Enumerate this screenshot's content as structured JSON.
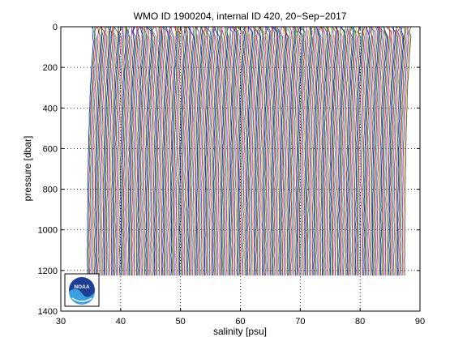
{
  "chart_data": {
    "type": "line",
    "title": "WMO ID 1900204, internal ID 420, 20−Sep−2017",
    "xlabel": "salinity [psu]",
    "ylabel": "pressure [dbar]",
    "xlim": [
      30,
      90
    ],
    "ylim": [
      0,
      1400
    ],
    "y_reversed": true,
    "grid": "dotted",
    "xticks": [
      30,
      40,
      50,
      60,
      70,
      80,
      90
    ],
    "yticks": [
      0,
      200,
      400,
      600,
      800,
      1000,
      1200,
      1400
    ],
    "xtick_labels": [
      "30",
      "40",
      "50",
      "60",
      "70",
      "80",
      "90"
    ],
    "ytick_labels": [
      "0",
      "200",
      "400",
      "600",
      "800",
      "1000",
      "1200",
      "1400"
    ],
    "series_colors": [
      "#0000ff",
      "#008000",
      "#ff0000",
      "#00bfbf",
      "#bf00bf",
      "#bfbf00",
      "#404040"
    ],
    "profiles": {
      "count": 266,
      "salinity_offset_start": 34.4,
      "salinity_offset_step": 0.2,
      "pressure_range": [
        0,
        1250
      ],
      "surface_salinity_anomaly": 0.8
    }
  },
  "logo": {
    "name": "noaa-logo",
    "text": "NOAA"
  }
}
